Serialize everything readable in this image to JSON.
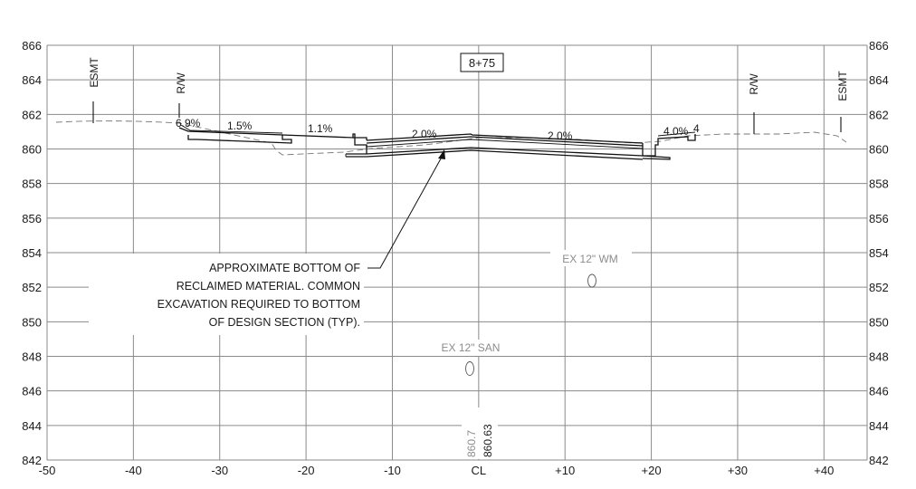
{
  "station": "8+75",
  "x_axis": {
    "min": -50,
    "max": 45,
    "step": 10,
    "tick_labels": [
      "-50",
      "-40",
      "-30",
      "-20",
      "-10",
      "CL",
      "+10",
      "+20",
      "+30",
      "+40"
    ]
  },
  "y_axis": {
    "min": 842,
    "max": 866,
    "step": 2,
    "tick_labels": [
      "842",
      "844",
      "846",
      "848",
      "850",
      "852",
      "854",
      "856",
      "858",
      "860",
      "862",
      "864",
      "866"
    ]
  },
  "left_labels": {
    "esmt": "ESMT",
    "rw": "R/W"
  },
  "right_labels": {
    "esmt": "ESMT",
    "rw": "R/W"
  },
  "slopes": {
    "left_outer": "6.9%",
    "left_mid": "1.5%",
    "left_inner": "1.1%",
    "left_lane": "2.0%",
    "right_lane": "2.0%",
    "right_outer": "4.0%",
    "right_outer_cut": "4"
  },
  "note_lines": [
    "APPROXIMATE BOTTOM OF",
    "RECLAIMED MATERIAL. COMMON",
    "EXCAVATION REQUIRED TO BOTTOM",
    "OF DESIGN SECTION (TYP)."
  ],
  "utilities": {
    "watermain": "EX 12\" WM",
    "sanitary": "EX 12\" SAN"
  },
  "centerline_elevations": {
    "existing": "860.7",
    "proposed": "860.63"
  }
}
